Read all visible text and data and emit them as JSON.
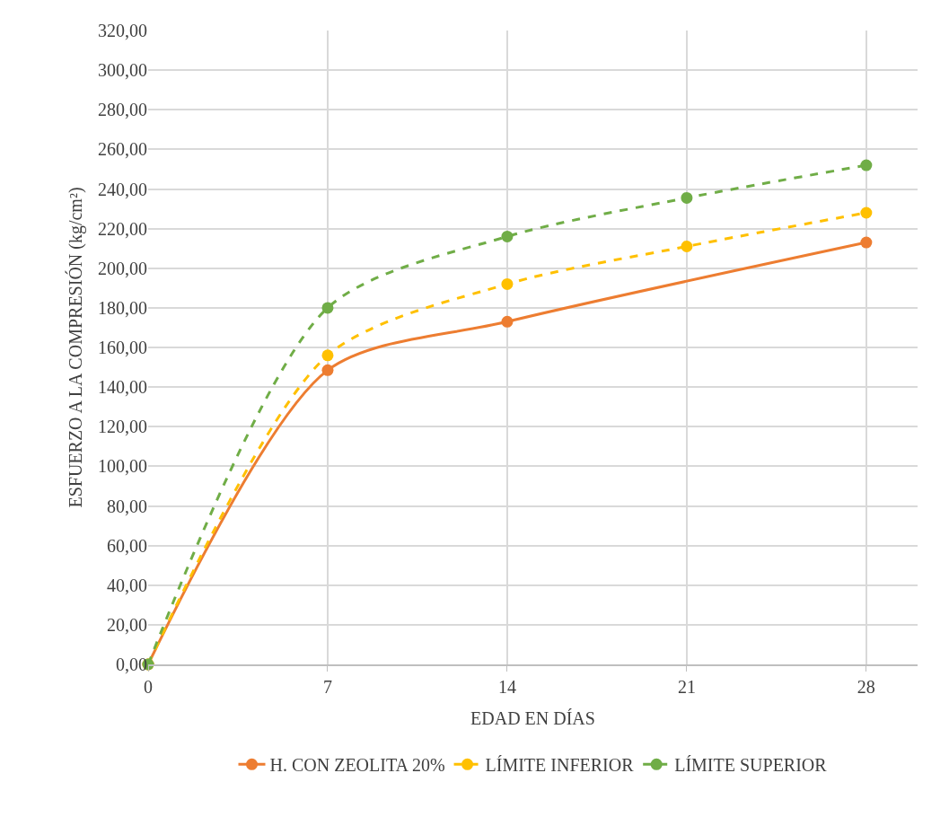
{
  "chart_data": {
    "type": "line",
    "xlabel": "EDAD EN DÍAS",
    "ylabel": "ESFUERZO A LA COMPRESIÓN (kg/cm²)",
    "xlim": [
      0,
      30
    ],
    "xticks": [
      0,
      7,
      14,
      21,
      28
    ],
    "ylim": [
      0,
      320
    ],
    "yticks": [
      {
        "value": 0,
        "label": "0,00"
      },
      {
        "value": 20,
        "label": "20,00"
      },
      {
        "value": 40,
        "label": "40,00"
      },
      {
        "value": 60,
        "label": "60,00"
      },
      {
        "value": 80,
        "label": "80,00"
      },
      {
        "value": 100,
        "label": "100,00"
      },
      {
        "value": 120,
        "label": "120,00"
      },
      {
        "value": 140,
        "label": "140,00"
      },
      {
        "value": 160,
        "label": "160,00"
      },
      {
        "value": 180,
        "label": "180,00"
      },
      {
        "value": 200,
        "label": "200,00"
      },
      {
        "value": 220,
        "label": "220,00"
      },
      {
        "value": 240,
        "label": "240,00"
      },
      {
        "value": 260,
        "label": "260,00"
      },
      {
        "value": 280,
        "label": "280,00"
      },
      {
        "value": 300,
        "label": "300,00"
      },
      {
        "value": 320,
        "label": "320,00"
      }
    ],
    "grid": true,
    "legend": "bottom",
    "marker": "circle",
    "series": [
      {
        "name": "H. CON ZEOLITA 20%",
        "color": "#ed7d31",
        "line_style": "solid",
        "x": [
          0,
          7,
          14,
          28
        ],
        "values": [
          0,
          148.5,
          173,
          213
        ]
      },
      {
        "name": "LÍMITE INFERIOR",
        "color": "#ffc000",
        "line_style": "dashed",
        "x": [
          0,
          7,
          14,
          21,
          28
        ],
        "values": [
          0,
          156,
          192,
          211,
          228
        ]
      },
      {
        "name": "LÍMITE SUPERIOR",
        "color": "#70ad47",
        "line_style": "dashed",
        "x": [
          0,
          7,
          14,
          21,
          28
        ],
        "values": [
          0,
          180,
          216,
          235.5,
          252
        ]
      }
    ]
  }
}
